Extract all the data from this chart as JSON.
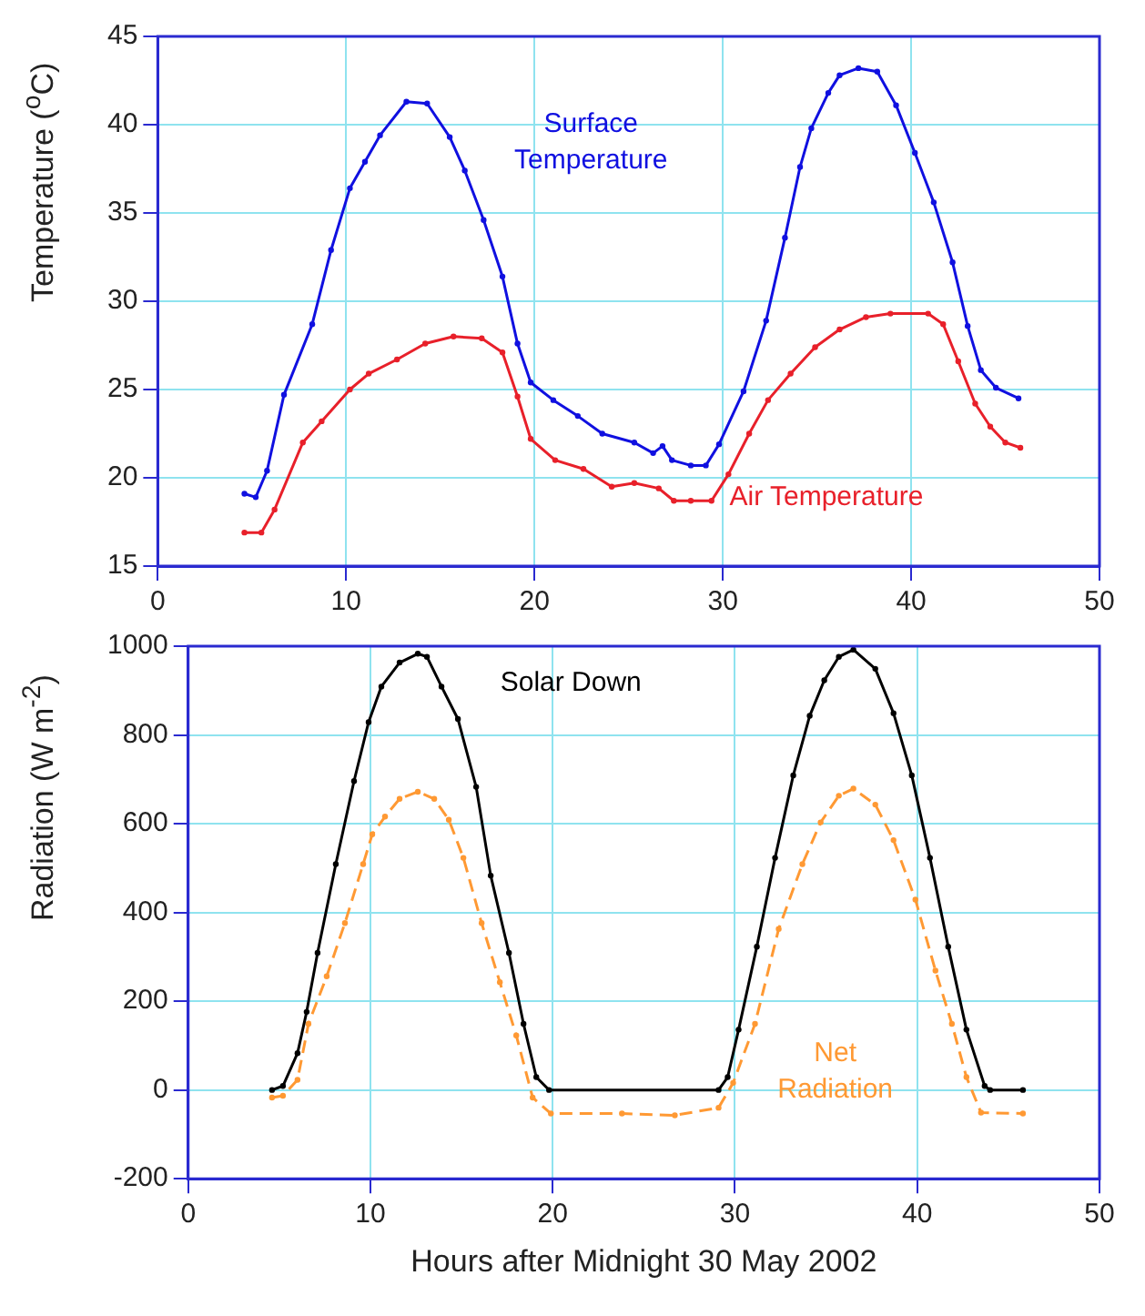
{
  "chart_data": [
    {
      "type": "line",
      "ylabel": "Temperature ($^{o}$C)",
      "xlim": [
        0,
        50
      ],
      "xticks": [
        0,
        10,
        20,
        30,
        40,
        50
      ],
      "ylim": [
        15,
        45
      ],
      "yticks": [
        15,
        20,
        25,
        30,
        35,
        40,
        45
      ],
      "grid": true,
      "legend": false,
      "marker": "circle",
      "series": [
        {
          "name": "Surface Temperature",
          "color": "#1010e0",
          "x": [
            4.6,
            5.2,
            5.8,
            6.7,
            8.2,
            9.2,
            10.2,
            11.0,
            11.8,
            13.2,
            14.3,
            15.5,
            16.3,
            17.3,
            18.3,
            19.1,
            19.8,
            21.0,
            22.3,
            23.6,
            25.3,
            26.3,
            26.8,
            27.3,
            28.3,
            29.1,
            29.8,
            31.1,
            32.3,
            33.3,
            34.1,
            34.7,
            35.6,
            36.2,
            37.2,
            38.2,
            39.2,
            40.2,
            41.2,
            42.2,
            43.0,
            43.7,
            44.5,
            45.7
          ],
          "values": [
            19.1,
            18.9,
            20.4,
            24.7,
            28.7,
            32.9,
            36.4,
            37.9,
            39.4,
            41.3,
            41.2,
            39.3,
            37.4,
            34.6,
            31.4,
            27.6,
            25.4,
            24.4,
            23.5,
            22.5,
            22.0,
            21.4,
            21.8,
            21.0,
            20.7,
            20.7,
            21.9,
            24.9,
            28.9,
            33.6,
            37.6,
            39.8,
            41.8,
            42.8,
            43.2,
            43.0,
            41.1,
            38.4,
            35.6,
            32.2,
            28.6,
            26.1,
            25.1,
            24.5
          ]
        },
        {
          "name": "Air Temperature",
          "color": "#e8202a",
          "x": [
            4.6,
            5.5,
            6.2,
            7.7,
            8.7,
            10.2,
            11.2,
            12.7,
            14.2,
            15.7,
            17.2,
            18.3,
            19.1,
            19.8,
            21.1,
            22.6,
            24.1,
            25.3,
            26.6,
            27.4,
            28.3,
            29.4,
            30.3,
            31.4,
            32.4,
            33.6,
            34.9,
            36.2,
            37.6,
            38.9,
            40.9,
            41.7,
            42.5,
            43.4,
            44.2,
            45.0,
            45.8
          ],
          "values": [
            16.9,
            16.9,
            18.2,
            22.0,
            23.2,
            25.0,
            25.9,
            26.7,
            27.6,
            28.0,
            27.9,
            27.1,
            24.6,
            22.2,
            21.0,
            20.5,
            19.5,
            19.7,
            19.4,
            18.7,
            18.7,
            18.7,
            20.2,
            22.5,
            24.4,
            25.9,
            27.4,
            28.4,
            29.1,
            29.3,
            29.3,
            28.7,
            26.6,
            24.2,
            22.9,
            22.0,
            21.7
          ]
        }
      ]
    },
    {
      "type": "line",
      "xlabel": "Hours after Midnight 30 May 2002",
      "ylabel": "Radiation (W m$^{-2}$)",
      "xlim": [
        0,
        50
      ],
      "xticks": [
        0,
        10,
        20,
        30,
        40,
        50
      ],
      "ylim": [
        -200,
        1000
      ],
      "yticks": [
        -200,
        0,
        200,
        400,
        600,
        800,
        1000
      ],
      "grid": true,
      "legend": false,
      "marker": "circle",
      "series": [
        {
          "name": "Solar Down",
          "color": "#000000",
          "line_style": "solid",
          "x": [
            4.6,
            5.2,
            6.0,
            6.5,
            7.1,
            8.1,
            9.1,
            9.9,
            10.6,
            11.6,
            12.6,
            13.1,
            13.9,
            14.8,
            15.8,
            16.6,
            17.6,
            18.4,
            19.1,
            19.8,
            29.1,
            29.6,
            30.2,
            31.2,
            32.2,
            33.2,
            34.1,
            34.9,
            35.7,
            36.5,
            37.7,
            38.7,
            39.7,
            40.7,
            41.7,
            42.7,
            43.7,
            44.0,
            45.8
          ],
          "values": [
            0,
            9,
            83,
            176,
            309,
            509,
            696,
            829,
            909,
            963,
            983,
            976,
            909,
            836,
            683,
            483,
            309,
            149,
            29,
            0,
            0,
            29,
            136,
            323,
            523,
            709,
            843,
            923,
            976,
            992,
            949,
            849,
            709,
            523,
            323,
            136,
            9,
            0,
            0
          ]
        },
        {
          "name": "Net Radiation",
          "color": "#ff9933",
          "line_style": "dashed",
          "x": [
            4.6,
            5.2,
            6.0,
            6.6,
            7.6,
            8.6,
            9.6,
            10.1,
            10.8,
            11.6,
            12.6,
            13.5,
            14.3,
            15.1,
            16.1,
            17.1,
            18.0,
            18.9,
            19.9,
            23.8,
            26.7,
            29.1,
            29.9,
            31.1,
            32.4,
            33.7,
            34.7,
            35.7,
            36.5,
            37.7,
            38.7,
            39.9,
            41.0,
            41.9,
            42.7,
            43.5,
            45.8
          ],
          "values": [
            -17,
            -13,
            23,
            149,
            256,
            376,
            509,
            576,
            616,
            656,
            672,
            656,
            609,
            523,
            376,
            243,
            123,
            -17,
            -53,
            -53,
            -57,
            -40,
            16,
            149,
            363,
            509,
            603,
            663,
            679,
            643,
            563,
            429,
            269,
            149,
            29,
            -51,
            -53
          ]
        }
      ]
    }
  ]
}
